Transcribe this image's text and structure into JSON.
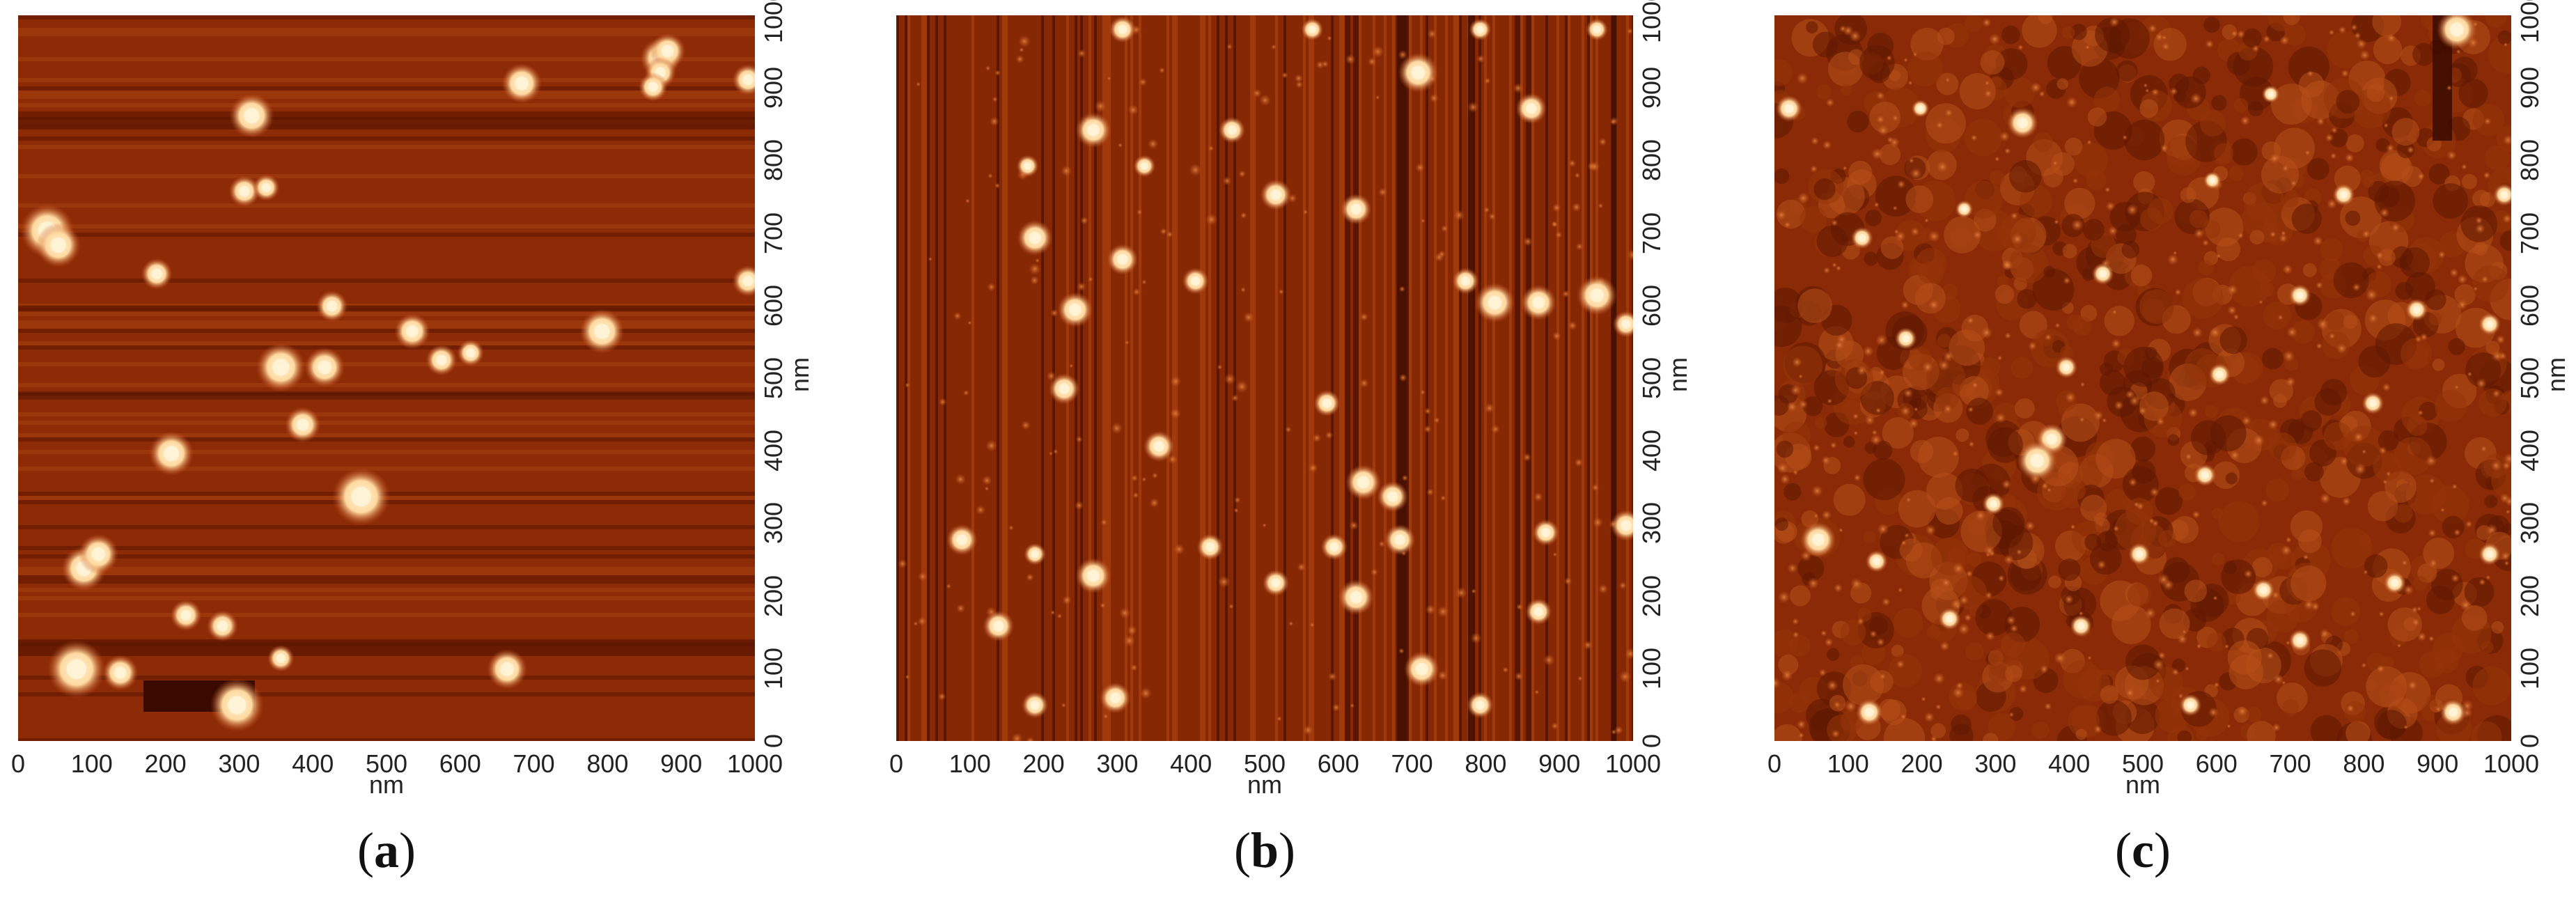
{
  "figure": {
    "axis_unit": "nm",
    "x_ticks": [
      "0",
      "100",
      "200",
      "300",
      "400",
      "500",
      "600",
      "700",
      "800",
      "900",
      "1000"
    ],
    "y_ticks": [
      "0",
      "100",
      "200",
      "300",
      "400",
      "500",
      "600",
      "700",
      "800",
      "900",
      "1000"
    ],
    "colors": {
      "background": "#8b2a06",
      "mid": "#c0501a",
      "highlight": "#fff4d8",
      "dark": "#3a0a00"
    },
    "panels": [
      {
        "id": "a",
        "label_open": "(",
        "label_letter": "a",
        "label_close": ")",
        "description_texture": "large bright particles on striped substrate",
        "particles": [
          [
            880,
            950,
            18
          ],
          [
            890,
            960,
            16
          ],
          [
            880,
            930,
            14
          ],
          [
            870,
            910,
            13
          ],
          [
            690,
            915,
            18
          ],
          [
            40,
            710,
            24
          ],
          [
            55,
            690,
            20
          ],
          [
            190,
            650,
            14
          ],
          [
            310,
            765,
            14
          ],
          [
            340,
            770,
            12
          ],
          [
            430,
            605,
            14
          ],
          [
            540,
            570,
            16
          ],
          [
            580,
            530,
            14
          ],
          [
            620,
            540,
            12
          ],
          [
            360,
            520,
            22
          ],
          [
            420,
            520,
            18
          ],
          [
            390,
            440,
            16
          ],
          [
            210,
            400,
            20
          ],
          [
            470,
            340,
            26
          ],
          [
            90,
            240,
            20
          ],
          [
            110,
            260,
            18
          ],
          [
            230,
            175,
            14
          ],
          [
            280,
            160,
            14
          ],
          [
            80,
            100,
            26
          ],
          [
            140,
            95,
            16
          ],
          [
            300,
            50,
            24
          ],
          [
            360,
            115,
            12
          ],
          [
            670,
            100,
            18
          ],
          [
            800,
            570,
            20
          ],
          [
            1000,
            920,
            14
          ],
          [
            1000,
            640,
            14
          ],
          [
            320,
            870,
            20
          ]
        ]
      },
      {
        "id": "b",
        "label_open": "(",
        "label_letter": "b",
        "label_close": ")",
        "description_texture": "vertical streaks with many small bright grains",
        "particles": [
          [
            310,
            990,
            12
          ],
          [
            570,
            990,
            10
          ],
          [
            800,
            990,
            10
          ],
          [
            960,
            990,
            10
          ],
          [
            715,
            930,
            18
          ],
          [
            870,
            880,
            14
          ],
          [
            270,
            850,
            16
          ],
          [
            460,
            850,
            12
          ],
          [
            180,
            800,
            10
          ],
          [
            340,
            800,
            10
          ],
          [
            520,
            760,
            14
          ],
          [
            630,
            740,
            14
          ],
          [
            190,
            700,
            16
          ],
          [
            310,
            670,
            14
          ],
          [
            410,
            640,
            12
          ],
          [
            780,
            640,
            12
          ],
          [
            820,
            610,
            18
          ],
          [
            880,
            610,
            16
          ],
          [
            960,
            620,
            18
          ],
          [
            245,
            600,
            16
          ],
          [
            1000,
            580,
            12
          ],
          [
            230,
            490,
            14
          ],
          [
            590,
            470,
            12
          ],
          [
            360,
            410,
            14
          ],
          [
            640,
            360,
            16
          ],
          [
            680,
            340,
            14
          ],
          [
            90,
            280,
            14
          ],
          [
            190,
            260,
            10
          ],
          [
            430,
            270,
            12
          ],
          [
            600,
            270,
            12
          ],
          [
            690,
            280,
            14
          ],
          [
            890,
            290,
            12
          ],
          [
            1000,
            300,
            14
          ],
          [
            270,
            230,
            16
          ],
          [
            520,
            220,
            12
          ],
          [
            630,
            200,
            16
          ],
          [
            140,
            160,
            14
          ],
          [
            880,
            180,
            12
          ],
          [
            720,
            100,
            16
          ],
          [
            300,
            60,
            14
          ],
          [
            190,
            50,
            12
          ],
          [
            800,
            50,
            12
          ]
        ]
      },
      {
        "id": "c",
        "label_open": "(",
        "label_letter": "c",
        "label_close": ")",
        "description_texture": "mottled substrate with fine grains",
        "particles": [
          [
            935,
            990,
            18
          ],
          [
            20,
            880,
            12
          ],
          [
            340,
            860,
            14
          ],
          [
            780,
            760,
            10
          ],
          [
            600,
            780,
            8
          ],
          [
            120,
            700,
            10
          ],
          [
            450,
            650,
            10
          ],
          [
            720,
            620,
            10
          ],
          [
            880,
            600,
            10
          ],
          [
            980,
            580,
            10
          ],
          [
            180,
            560,
            10
          ],
          [
            400,
            520,
            10
          ],
          [
            610,
            510,
            10
          ],
          [
            820,
            470,
            10
          ],
          [
            380,
            420,
            14
          ],
          [
            360,
            390,
            18
          ],
          [
            590,
            370,
            10
          ],
          [
            300,
            330,
            10
          ],
          [
            60,
            280,
            16
          ],
          [
            140,
            250,
            10
          ],
          [
            500,
            260,
            10
          ],
          [
            670,
            210,
            10
          ],
          [
            850,
            220,
            10
          ],
          [
            240,
            170,
            10
          ],
          [
            420,
            160,
            10
          ],
          [
            720,
            140,
            10
          ],
          [
            130,
            40,
            12
          ],
          [
            570,
            50,
            10
          ],
          [
            930,
            40,
            12
          ],
          [
            980,
            260,
            10
          ],
          [
            1000,
            760,
            10
          ],
          [
            260,
            740,
            8
          ],
          [
            680,
            900,
            8
          ],
          [
            200,
            880,
            8
          ]
        ]
      }
    ]
  }
}
